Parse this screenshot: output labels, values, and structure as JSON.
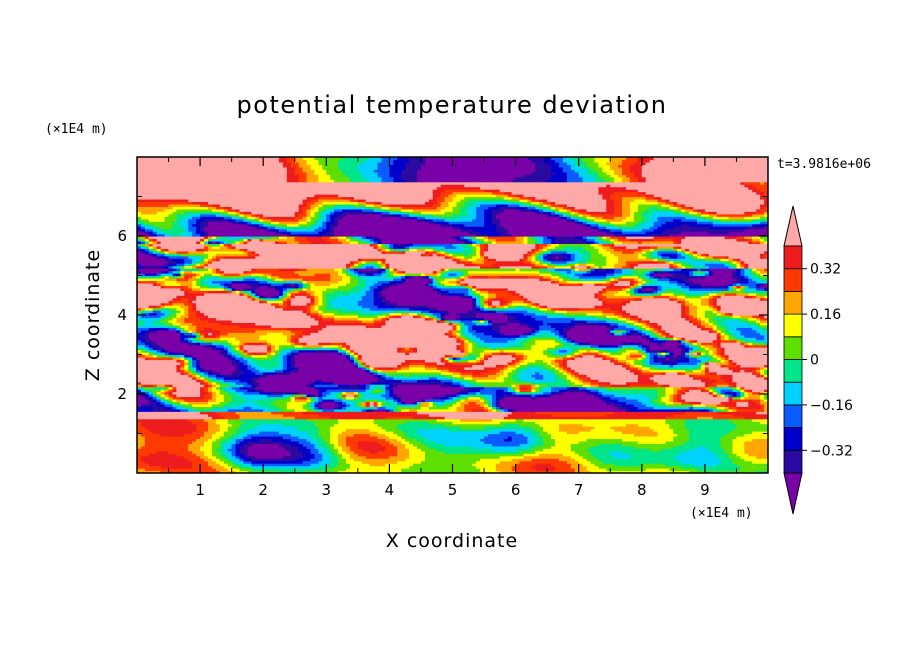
{
  "chart_data": {
    "type": "heatmap",
    "title": "potential temperature deviation",
    "xlabel": "X coordinate",
    "ylabel": "Z coordinate",
    "x_unit": "(×1E4 m)",
    "y_unit": "(×1E4 m)",
    "time_label": "t=3.9816e+06",
    "xlim": [
      0,
      10
    ],
    "ylim": [
      0,
      8
    ],
    "x_ticks": [
      1,
      2,
      3,
      4,
      5,
      6,
      7,
      8,
      9
    ],
    "y_ticks": [
      2,
      4,
      6
    ],
    "colorbar": {
      "levels": [
        -0.4,
        -0.32,
        -0.24,
        -0.16,
        -0.08,
        0,
        0.08,
        0.16,
        0.24,
        0.32,
        0.4
      ],
      "tick_values": [
        0.32,
        0.16,
        0,
        -0.16,
        -0.32
      ],
      "tick_labels": [
        "0.32",
        "0.16",
        "0",
        "−0.16",
        "−0.32"
      ],
      "colors": [
        "#7a00a8",
        "#2a0aa0",
        "#0000cc",
        "#0a5cff",
        "#00d2ff",
        "#00e58a",
        "#5de000",
        "#ffff00",
        "#ffa500",
        "#ff3a00",
        "#ee1c1c",
        "#ffa8a8"
      ],
      "extend": "both"
    }
  }
}
